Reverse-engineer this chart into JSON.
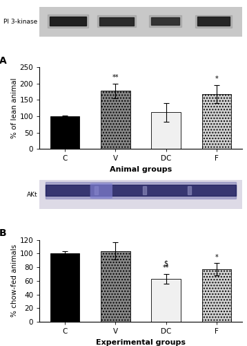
{
  "panel_A": {
    "categories": [
      "C",
      "V",
      "DC",
      "F"
    ],
    "values": [
      100,
      178,
      112,
      168
    ],
    "errors": [
      3,
      22,
      28,
      28
    ],
    "ylabel": "% of lean animal",
    "xlabel": "Animal groups",
    "ylim": [
      0,
      250
    ],
    "yticks": [
      0,
      50,
      100,
      150,
      200,
      250
    ],
    "annotations": [
      "",
      "**",
      "",
      "*"
    ],
    "bar_colors": [
      "#000000",
      "#888888",
      "#f0f0f0",
      "#d0d0d0"
    ],
    "bar_hatches": [
      null,
      "....",
      null,
      "...."
    ],
    "label": "A"
  },
  "panel_B": {
    "categories": [
      "C",
      "V",
      "DC",
      "F"
    ],
    "values": [
      100,
      104,
      63,
      77
    ],
    "errors": [
      3,
      13,
      7,
      9
    ],
    "ylabel": "% chow-fed animals",
    "xlabel": "Experimental groups",
    "ylim": [
      0,
      120
    ],
    "yticks": [
      0,
      20,
      40,
      60,
      80,
      100,
      120
    ],
    "annotations": [
      "",
      "",
      "$\n**",
      "*"
    ],
    "bar_colors": [
      "#000000",
      "#888888",
      "#f0f0f0",
      "#d0d0d0"
    ],
    "bar_hatches": [
      null,
      "....",
      null,
      "...."
    ],
    "label": "B"
  },
  "blot_A_label": "PI 3-kinase",
  "blot_B_label": "AKt",
  "background_color": "#ffffff"
}
